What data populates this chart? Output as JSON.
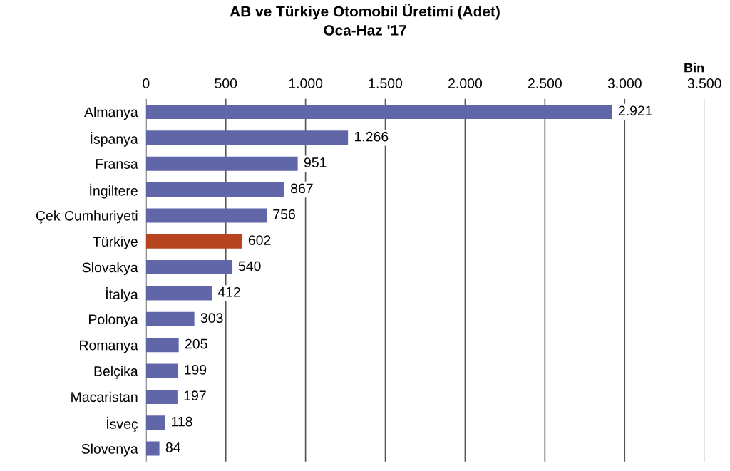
{
  "chart_data": {
    "type": "bar",
    "orientation": "horizontal",
    "title": "AB ve Türkiye Otomobil Üretimi (Adet)",
    "subtitle": "Oca-Haz '17",
    "xlabel": "Bin",
    "categories": [
      "Almanya",
      "İspanya",
      "Fransa",
      "İngiltere",
      "Çek Cumhuriyeti",
      "Türkiye",
      "Slovakya",
      "İtalya",
      "Polonya",
      "Romanya",
      "Belçika",
      "Macaristan",
      "İsveç",
      "Slovenya"
    ],
    "values": [
      2921,
      1266,
      951,
      867,
      756,
      602,
      540,
      412,
      303,
      205,
      199,
      197,
      118,
      84
    ],
    "value_labels": [
      "2.921",
      "1.266",
      "951",
      "867",
      "756",
      "602",
      "540",
      "412",
      "303",
      "205",
      "199",
      "197",
      "118",
      "84"
    ],
    "colors": [
      "#6166a9",
      "#6166a9",
      "#6166a9",
      "#6166a9",
      "#6166a9",
      "#b5441f",
      "#6166a9",
      "#6166a9",
      "#6166a9",
      "#6166a9",
      "#6166a9",
      "#6166a9",
      "#6166a9",
      "#6166a9"
    ],
    "xlim": [
      0,
      3500
    ],
    "xticks": [
      0,
      500,
      {
        "value": 1000,
        "label": "1.000"
      },
      {
        "value": 1500,
        "label": "1.500"
      },
      {
        "value": 2000,
        "label": "2.000"
      },
      {
        "value": 2500,
        "label": "2.500"
      },
      {
        "value": 3000,
        "label": "3.000"
      },
      {
        "value": 3500,
        "label": "3.500"
      }
    ],
    "grid": "x",
    "legend": false
  }
}
